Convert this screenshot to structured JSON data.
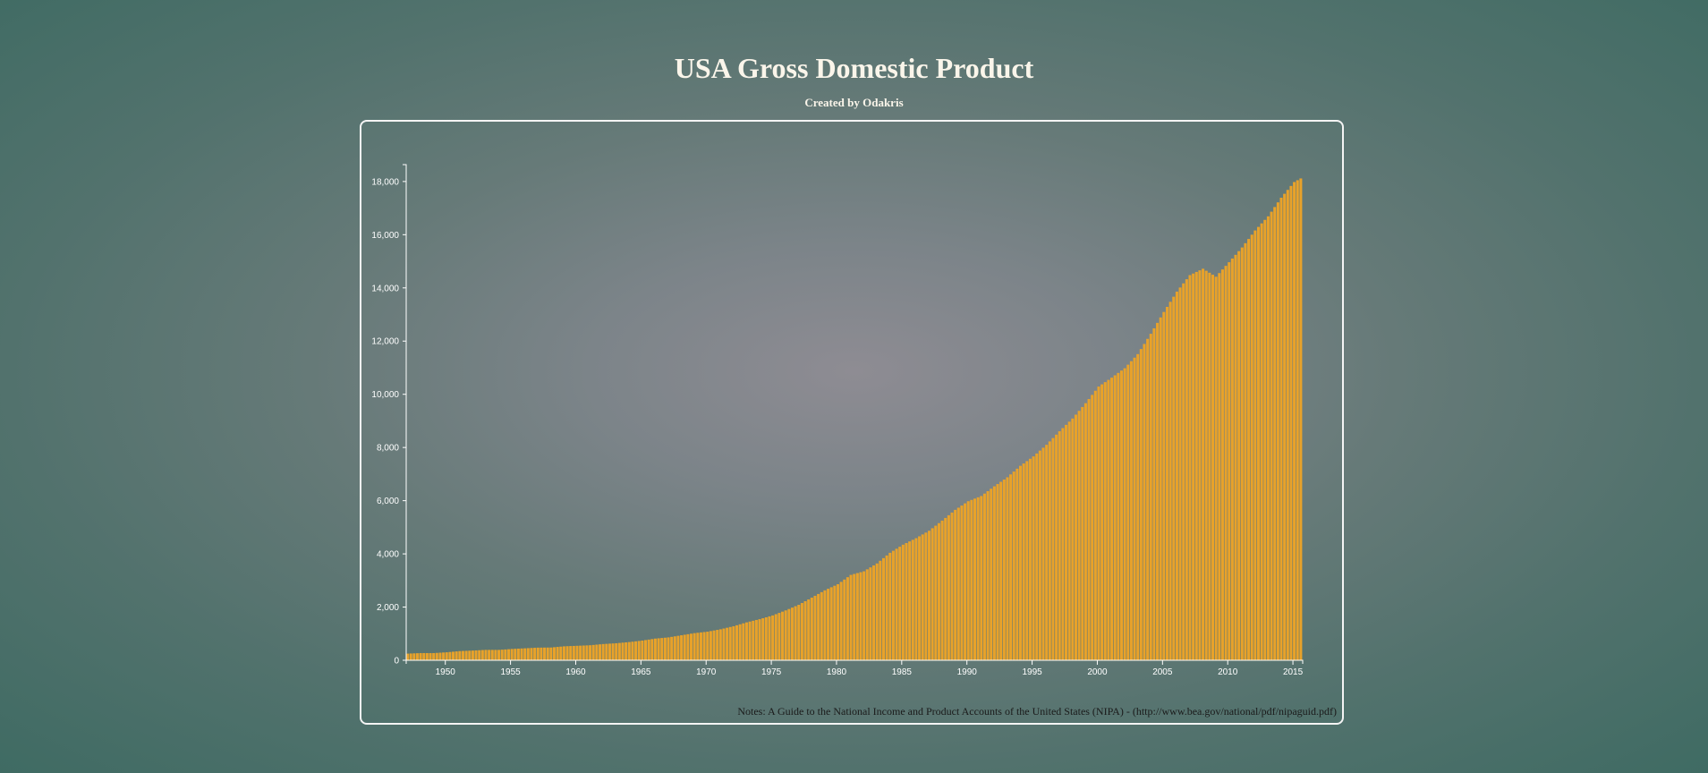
{
  "header": {
    "title": "USA Gross Domestic Product",
    "subtitle": "Created by Odakris"
  },
  "notes": "Notes: A Guide to the National Income and Product Accounts of the United States (NIPA) - (http://www.bea.gov/national/pdf/nipaguid.pdf)",
  "colors": {
    "bar": "#e8a22a",
    "axis": "#ffffff",
    "title": "#faf5ea"
  },
  "chart_data": {
    "type": "bar",
    "title": "USA Gross Domestic Product",
    "subtitle": "Created by Odakris",
    "xlabel": "",
    "ylabel": "",
    "frequency": "quarterly",
    "x_start": "1947-Q1",
    "x_end": "2015-Q3",
    "x_ticks": [
      "1950",
      "1955",
      "1960",
      "1965",
      "1970",
      "1975",
      "1980",
      "1985",
      "1990",
      "1995",
      "2000",
      "2005",
      "2010",
      "2015"
    ],
    "y_ticks": [
      "0",
      "2,000",
      "4,000",
      "6,000",
      "8,000",
      "10,000",
      "12,000",
      "14,000",
      "16,000",
      "18,000"
    ],
    "ylim": [
      0,
      18500
    ],
    "grid": false,
    "legend": "none",
    "annual_values": {
      "1947": 250,
      "1948": 270,
      "1949": 270,
      "1950": 300,
      "1951": 345,
      "1952": 365,
      "1953": 390,
      "1954": 390,
      "1955": 425,
      "1956": 450,
      "1957": 475,
      "1958": 480,
      "1959": 525,
      "1960": 545,
      "1961": 565,
      "1962": 610,
      "1963": 640,
      "1964": 685,
      "1965": 740,
      "1966": 815,
      "1967": 860,
      "1968": 940,
      "1969": 1020,
      "1970": 1075,
      "1971": 1165,
      "1972": 1280,
      "1973": 1425,
      "1974": 1545,
      "1975": 1685,
      "1976": 1875,
      "1977": 2085,
      "1978": 2355,
      "1979": 2630,
      "1980": 2860,
      "1981": 3210,
      "1982": 3345,
      "1983": 3640,
      "1984": 4040,
      "1985": 4345,
      "1986": 4590,
      "1987": 4870,
      "1988": 5250,
      "1989": 5655,
      "1990": 5980,
      "1991": 6175,
      "1992": 6540,
      "1993": 6880,
      "1994": 7310,
      "1995": 7665,
      "1996": 8100,
      "1997": 8610,
      "1998": 9090,
      "1999": 9665,
      "2000": 10290,
      "2001": 10625,
      "2002": 10980,
      "2003": 11510,
      "2004": 12275,
      "2005": 13095,
      "2006": 13860,
      "2007": 14480,
      "2008": 14720,
      "2009": 14420,
      "2010": 14965,
      "2011": 15520,
      "2012": 16160,
      "2013": 16690,
      "2014": 17390,
      "2015": 17980,
      "2016": 18250
    },
    "notes": "Notes: A Guide to the National Income and Product Accounts of the United States (NIPA) - (http://www.bea.gov/national/pdf/nipaguid.pdf)"
  }
}
